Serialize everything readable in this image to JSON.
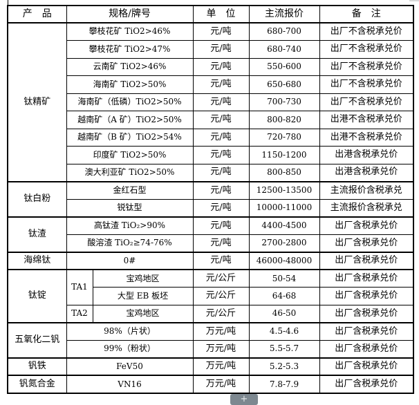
{
  "viewer": {
    "zoom_in_label": "+"
  },
  "colors": {
    "background": "#ffffff",
    "border": "#000000",
    "text": "#000000",
    "zoom_button_bg": "#7d8890",
    "zoom_button_fg": "#e7eaec"
  },
  "table": {
    "headers": [
      "产　品",
      "规格/牌号",
      "单　位",
      "主流报价",
      "备　注"
    ],
    "sections": [
      {
        "product": "钛精矿",
        "rows": [
          {
            "spec": "攀枝花矿 TiO2>46%",
            "unit": "元/吨",
            "price": "680-700",
            "note": "出厂不含税承兑价"
          },
          {
            "spec": "攀枝花矿 TiO2>47%",
            "unit": "元/吨",
            "price": "680-740",
            "note": "出厂不含税承兑价"
          },
          {
            "spec": "云南矿 TiO2>46%",
            "unit": "元/吨",
            "price": "550-600",
            "note": "出厂不含税承兑价"
          },
          {
            "spec": "海南矿 TiO2>50%",
            "unit": "元/吨",
            "price": "650-680",
            "note": "出厂不含税承兑价"
          },
          {
            "spec": "海南矿（低磷）TiO2>50%",
            "unit": "元/吨",
            "price": "700-730",
            "note": "出厂不含税承兑价"
          },
          {
            "spec": "越南矿（A 矿）TiO2>50%",
            "unit": "元/吨",
            "price": "800-820",
            "note": "出港不含税承兑价"
          },
          {
            "spec": "越南矿（B 矿）TiO2>54%",
            "unit": "元/吨",
            "price": "720-780",
            "note": "出港不含税承兑价"
          },
          {
            "spec": "印度矿 TiO2>50%",
            "unit": "元/吨",
            "price": "1150-1200",
            "note": "出港含税承兑价"
          },
          {
            "spec": "澳大利亚矿 TiO2>50%",
            "unit": "元/吨",
            "price": "800-850",
            "note": "出港含税承兑价"
          }
        ]
      },
      {
        "product": "钛白粉",
        "rows": [
          {
            "spec": "金红石型",
            "unit": "元/吨",
            "price": "12500-13500",
            "note": "主流报价含税承兑"
          },
          {
            "spec": "锐钛型",
            "unit": "元/吨",
            "price": "10000-11000",
            "note": "主流报价含税承兑"
          }
        ]
      },
      {
        "product": "钛渣",
        "rows": [
          {
            "spec": "高钛渣 TiO₂>90%",
            "unit": "元/吨",
            "price": "4400-4500",
            "note": "出厂含税承兑价"
          },
          {
            "spec": "酸溶渣 TiO₂≥74-76%",
            "unit": "元/吨",
            "price": "2700-2800",
            "note": "出厂含税承兑价"
          }
        ]
      },
      {
        "product": "海绵钛",
        "rows": [
          {
            "spec": "0#",
            "unit": "元/吨",
            "price": "46000-48000",
            "note": "出厂含税承兑价"
          }
        ]
      },
      {
        "product": "钛锭",
        "rows": [
          {
            "grade": "TA1",
            "spec": "宝鸡地区",
            "unit": "元/公斤",
            "price": "50-54",
            "note": "出厂含税承兑价"
          },
          {
            "spec": "大型 EB 板坯",
            "unit": "元/公斤",
            "price": "64-68",
            "note": "出厂含税承兑价"
          },
          {
            "grade": "TA2",
            "spec": "宝鸡地区",
            "unit": "元/公斤",
            "price": "46-50",
            "note": "出厂含税承兑价"
          }
        ]
      },
      {
        "product": "五氧化二钒",
        "rows": [
          {
            "spec": "98%（片状）",
            "unit": "万元/吨",
            "price": "4.5-4.6",
            "note": "出厂含税承兑价"
          },
          {
            "spec": "99%（粉状）",
            "unit": "万元/吨",
            "price": "5.5-5.7",
            "note": "出厂含税承兑价"
          }
        ]
      },
      {
        "product": "钒铁",
        "rows": [
          {
            "spec": "FeV50",
            "unit": "万元/吨",
            "price": "5.2-5.3",
            "note": "出厂含税承兑价"
          }
        ]
      },
      {
        "product": "钒氮合金",
        "rows": [
          {
            "spec": "VN16",
            "unit": "万元/吨",
            "price": "7.8-7.9",
            "note": "出厂含税承兑价"
          }
        ]
      }
    ]
  }
}
